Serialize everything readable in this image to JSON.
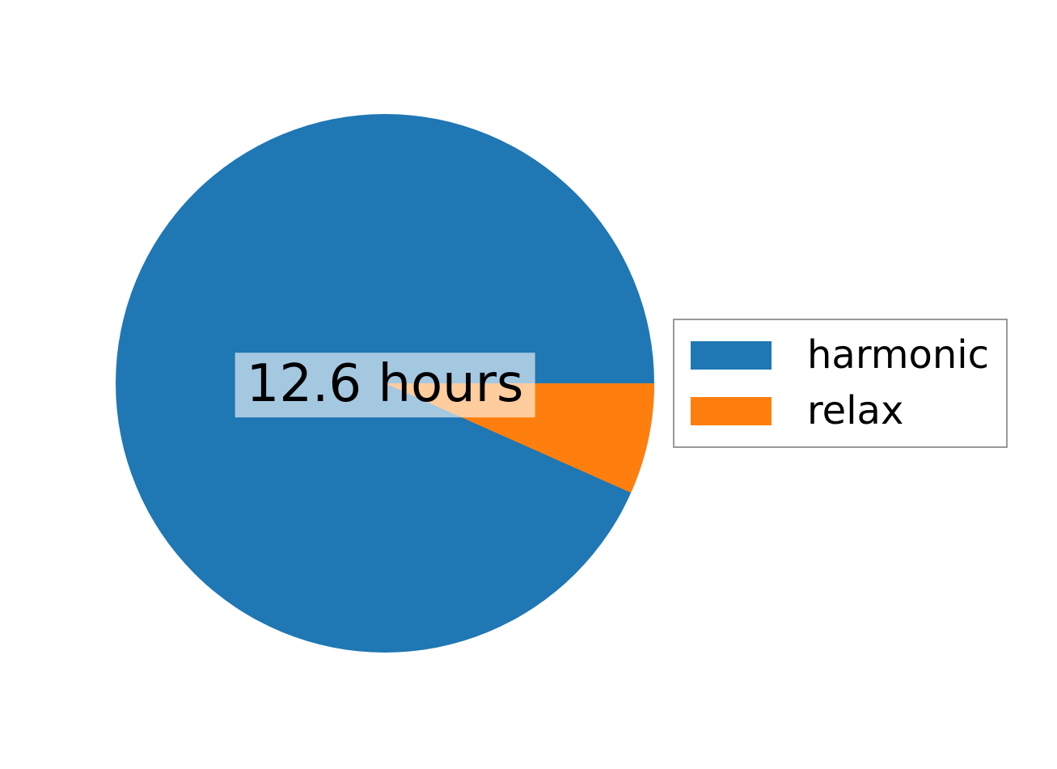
{
  "chart_data": {
    "type": "pie",
    "categories": [
      "harmonic",
      "relax"
    ],
    "values": [
      12.6,
      0.9
    ],
    "unit": "hours",
    "percentages": [
      93.3,
      6.7
    ],
    "colors": [
      "#1f77b4",
      "#ff7f0e"
    ],
    "start_angle_deg": 0,
    "counterclockwise": true,
    "center_label": "12.6 hours",
    "center_label_bg": "rgba(255,255,255,0.6)",
    "legend_position": "center right",
    "legend": {
      "items": [
        {
          "label": "harmonic",
          "color": "#1f77b4"
        },
        {
          "label": "relax",
          "color": "#ff7f0e"
        }
      ]
    },
    "title": "",
    "xlabel": "",
    "ylabel": ""
  }
}
